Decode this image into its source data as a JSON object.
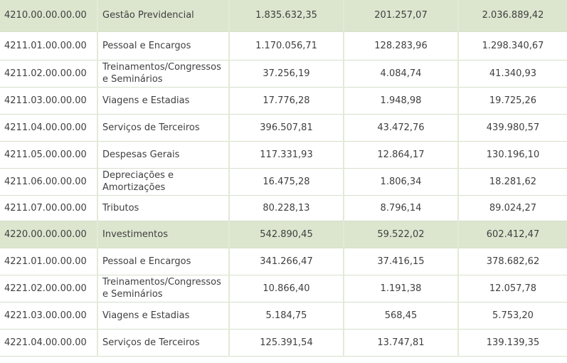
{
  "rows": [
    {
      "type": "group",
      "code": "4210.00.00.00.00",
      "desc": "Gestão Previdencial",
      "v1": "1.835.632,35",
      "v2": "201.257,07",
      "v3": "2.036.889,42"
    },
    {
      "type": "item",
      "code": "4211.01.00.00.00",
      "desc": "Pessoal e Encargos",
      "v1": "1.170.056,71",
      "v2": "128.283,96",
      "v3": "1.298.340,67"
    },
    {
      "type": "item",
      "code": "4211.02.00.00.00",
      "desc": "Treinamentos/Congressos e Seminários",
      "v1": "37.256,19",
      "v2": "4.084,74",
      "v3": "41.340,93"
    },
    {
      "type": "item",
      "code": "4211.03.00.00.00",
      "desc": "Viagens e Estadias",
      "v1": "17.776,28",
      "v2": "1.948,98",
      "v3": "19.725,26"
    },
    {
      "type": "item",
      "code": "4211.04.00.00.00",
      "desc": "Serviços de Terceiros",
      "v1": "396.507,81",
      "v2": "43.472,76",
      "v3": "439.980,57"
    },
    {
      "type": "item",
      "code": "4211.05.00.00.00",
      "desc": "Despesas Gerais",
      "v1": "117.331,93",
      "v2": "12.864,17",
      "v3": "130.196,10"
    },
    {
      "type": "item",
      "code": "4211.06.00.00.00",
      "desc": "Depreciações e Amortizações",
      "v1": "16.475,28",
      "v2": "1.806,34",
      "v3": "18.281,62"
    },
    {
      "type": "item",
      "code": "4211.07.00.00.00",
      "desc": "Tributos",
      "v1": "80.228,13",
      "v2": "8.796,14",
      "v3": "89.024,27"
    },
    {
      "type": "group",
      "code": "4220.00.00.00.00",
      "desc": "Investimentos",
      "v1": "542.890,45",
      "v2": "59.522,02",
      "v3": "602.412,47"
    },
    {
      "type": "item",
      "code": "4221.01.00.00.00",
      "desc": "Pessoal e Encargos",
      "v1": "341.266,47",
      "v2": "37.416,15",
      "v3": "378.682,62"
    },
    {
      "type": "item",
      "code": "4221.02.00.00.00",
      "desc": "Treinamentos/Congressos e Seminários",
      "v1": "10.866,40",
      "v2": "1.191,38",
      "v3": "12.057,78"
    },
    {
      "type": "item",
      "code": "4221.03.00.00.00",
      "desc": "Viagens e Estadias",
      "v1": "5.184,75",
      "v2": "568,45",
      "v3": "5.753,20"
    },
    {
      "type": "item",
      "code": "4221.04.00.00.00",
      "desc": "Serviços de Terceiros",
      "v1": "125.391,54",
      "v2": "13.747,81",
      "v3": "139.139,35"
    }
  ]
}
